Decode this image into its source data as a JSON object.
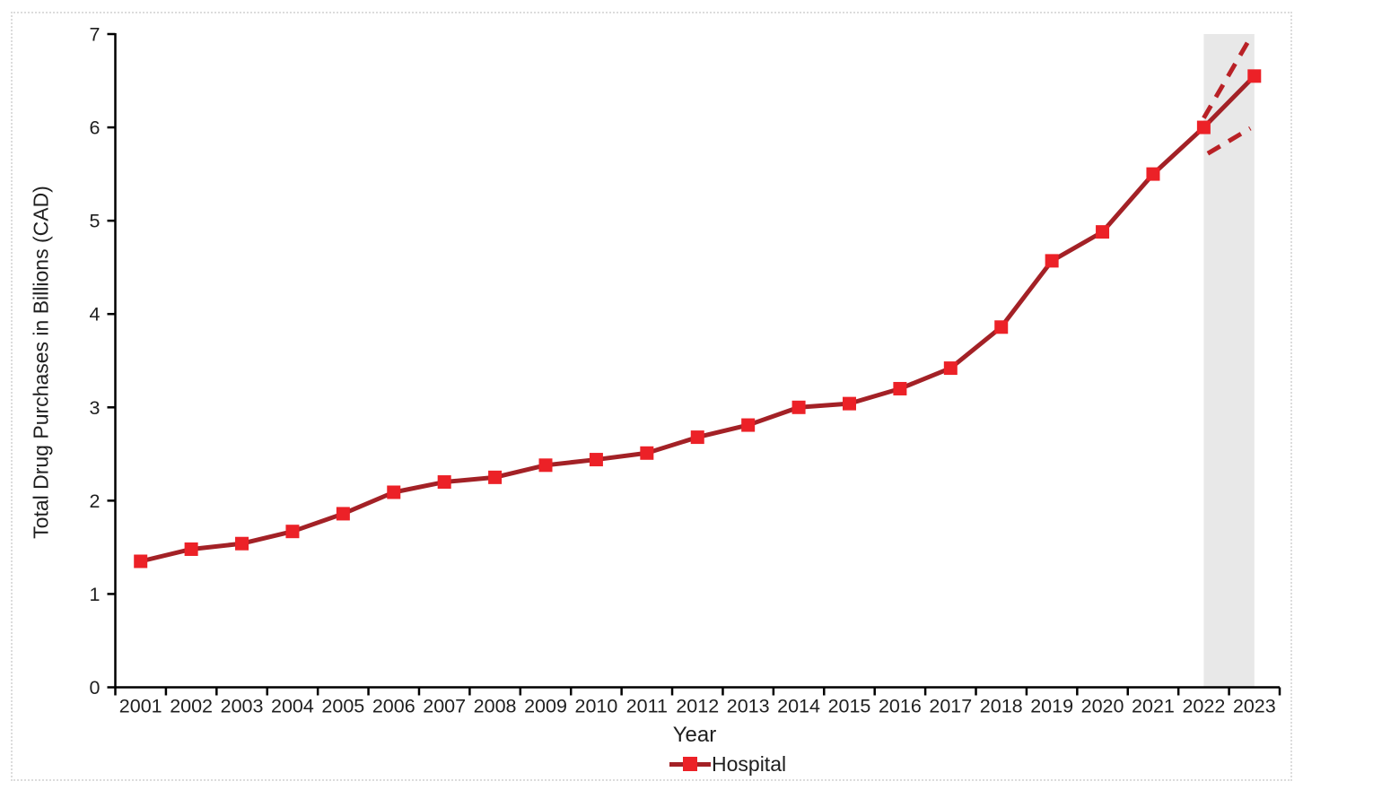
{
  "chart_data": {
    "type": "line",
    "title": "",
    "xlabel": "Year",
    "ylabel": "Total Drug Purchases in Billions (CAD)",
    "ylim": [
      0,
      7
    ],
    "yticks": [
      0,
      1,
      2,
      3,
      4,
      5,
      6,
      7
    ],
    "grid": false,
    "legend_position": "bottom",
    "categories": [
      "2001",
      "2002",
      "2003",
      "2004",
      "2005",
      "2006",
      "2007",
      "2008",
      "2009",
      "2010",
      "2011",
      "2012",
      "2013",
      "2014",
      "2015",
      "2016",
      "2017",
      "2018",
      "2019",
      "2020",
      "2021",
      "2022",
      "2023"
    ],
    "series": [
      {
        "name": "Hospital",
        "values": [
          1.35,
          1.48,
          1.54,
          1.67,
          1.86,
          2.09,
          2.2,
          2.25,
          2.38,
          2.44,
          2.51,
          2.68,
          2.81,
          3.0,
          3.04,
          3.2,
          3.42,
          3.86,
          4.57,
          4.88,
          5.5,
          6.0,
          6.55
        ],
        "line_color": "#A32126",
        "marker_color": "#EC2127",
        "marker_shape": "square"
      }
    ],
    "forecast": {
      "band": {
        "from_year": 2022,
        "to_year": 2023,
        "color": "#E8E8E8"
      },
      "lines": [
        {
          "name": "forecast-upper-dashed",
          "from_year": 2022.0,
          "from_value": 6.1,
          "to_year": 2022.92,
          "to_value": 6.96,
          "color": "#B92126"
        },
        {
          "name": "forecast-lower-dashed",
          "from_year": 2022.08,
          "from_value": 5.72,
          "to_year": 2022.92,
          "to_value": 5.99,
          "color": "#B92126"
        }
      ]
    }
  },
  "legend": {
    "label": "Hospital"
  },
  "colors": {
    "axis": "#000000",
    "tick_text": "#1f1f1f",
    "border_dotted": "#dcdcdc",
    "background": "#ffffff"
  }
}
